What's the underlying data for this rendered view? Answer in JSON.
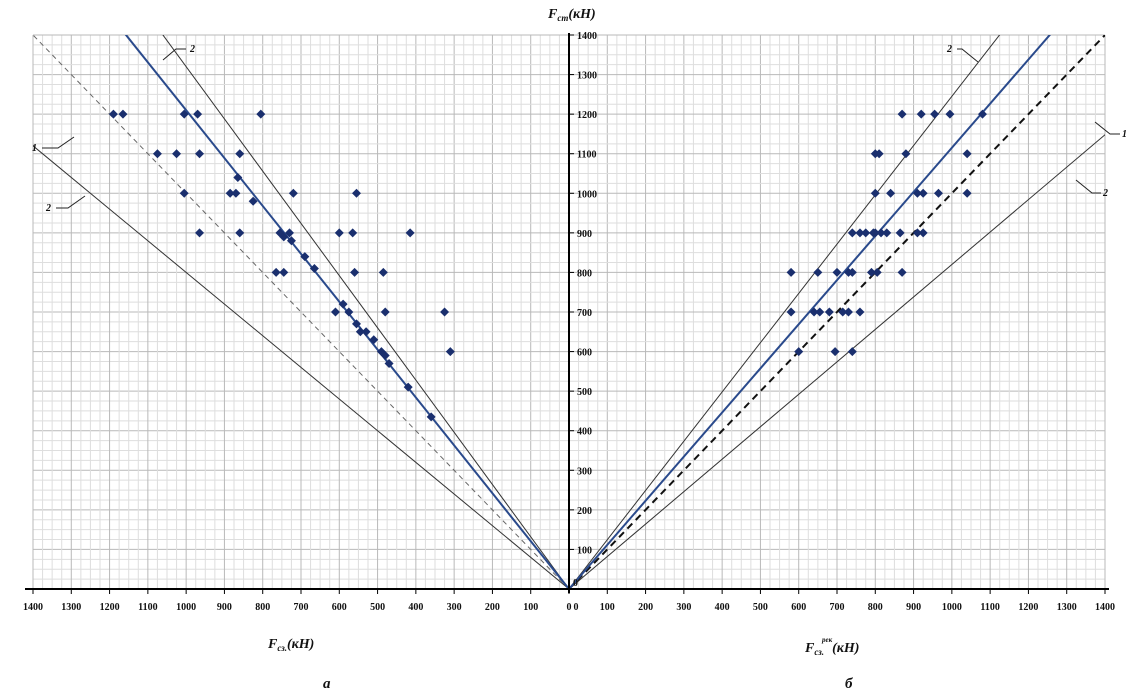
{
  "chart_data": {
    "type": "scatter",
    "y_axis_label": {
      "main": "F",
      "sub": "ст",
      "unit": "(кН)"
    },
    "x_label_left": {
      "main": "F",
      "sub": "сз.",
      "unit": "(кН)"
    },
    "x_label_right": {
      "main": "F",
      "sub": "сз.",
      "sup": "рек",
      "unit": "(кН)"
    },
    "panel_labels": [
      "а",
      "б"
    ],
    "line_labels": [
      "1",
      "2"
    ],
    "ylim": [
      0,
      1400
    ],
    "xlim_left": [
      1400,
      0
    ],
    "xlim_right": [
      0,
      1400
    ],
    "x_ticks_left": [
      1400,
      1300,
      1200,
      1100,
      1000,
      900,
      800,
      700,
      600,
      500,
      400,
      300,
      200,
      100,
      0
    ],
    "x_ticks_right": [
      0,
      100,
      200,
      300,
      400,
      500,
      600,
      700,
      800,
      900,
      1000,
      1100,
      1200,
      1300,
      1400
    ],
    "y_ticks": [
      100,
      200,
      300,
      400,
      500,
      600,
      700,
      800,
      900,
      1000,
      1100,
      1200,
      1300,
      1400
    ],
    "y_zero_tick": "0",
    "grid": true,
    "colors": {
      "points": "#1a2f6e",
      "regression": "#2a4a8c",
      "bound": "#333333",
      "dashed": "#333333"
    },
    "panel_a": {
      "points": [
        [
          1190,
          1200
        ],
        [
          1165,
          1200
        ],
        [
          1005,
          1200
        ],
        [
          970,
          1200
        ],
        [
          805,
          1200
        ],
        [
          1075,
          1100
        ],
        [
          1025,
          1100
        ],
        [
          965,
          1100
        ],
        [
          860,
          1100
        ],
        [
          865,
          1040
        ],
        [
          885,
          1000
        ],
        [
          870,
          1000
        ],
        [
          1005,
          1000
        ],
        [
          720,
          1000
        ],
        [
          555,
          1000
        ],
        [
          825,
          980
        ],
        [
          730,
          900
        ],
        [
          600,
          900
        ],
        [
          565,
          900
        ],
        [
          415,
          900
        ],
        [
          965,
          900
        ],
        [
          860,
          900
        ],
        [
          755,
          900
        ],
        [
          745,
          890
        ],
        [
          725,
          880
        ],
        [
          690,
          840
        ],
        [
          665,
          810
        ],
        [
          765,
          800
        ],
        [
          745,
          800
        ],
        [
          560,
          800
        ],
        [
          485,
          800
        ],
        [
          590,
          720
        ],
        [
          575,
          700
        ],
        [
          610,
          700
        ],
        [
          480,
          700
        ],
        [
          325,
          700
        ],
        [
          555,
          670
        ],
        [
          545,
          650
        ],
        [
          530,
          650
        ],
        [
          510,
          630
        ],
        [
          490,
          600
        ],
        [
          480,
          590
        ],
        [
          470,
          570
        ],
        [
          310,
          600
        ],
        [
          420,
          510
        ],
        [
          360,
          435
        ]
      ],
      "regression_slope": 1.21,
      "dashed_line1_slope": 1.0,
      "bound_upper_slope": 1.32,
      "bound_lower_slope": 0.8
    },
    "panel_b": {
      "points": [
        [
          870,
          1200
        ],
        [
          920,
          1200
        ],
        [
          955,
          1200
        ],
        [
          995,
          1200
        ],
        [
          1080,
          1200
        ],
        [
          800,
          1100
        ],
        [
          810,
          1100
        ],
        [
          880,
          1100
        ],
        [
          1040,
          1100
        ],
        [
          800,
          1000
        ],
        [
          840,
          1000
        ],
        [
          910,
          1000
        ],
        [
          925,
          1000
        ],
        [
          965,
          1000
        ],
        [
          1040,
          1000
        ],
        [
          740,
          900
        ],
        [
          760,
          900
        ],
        [
          775,
          900
        ],
        [
          795,
          900
        ],
        [
          800,
          900
        ],
        [
          815,
          900
        ],
        [
          830,
          900
        ],
        [
          865,
          900
        ],
        [
          910,
          900
        ],
        [
          925,
          900
        ],
        [
          580,
          800
        ],
        [
          650,
          800
        ],
        [
          700,
          800
        ],
        [
          730,
          800
        ],
        [
          740,
          800
        ],
        [
          790,
          800
        ],
        [
          805,
          800
        ],
        [
          870,
          800
        ],
        [
          580,
          700
        ],
        [
          640,
          700
        ],
        [
          655,
          700
        ],
        [
          680,
          700
        ],
        [
          715,
          700
        ],
        [
          730,
          700
        ],
        [
          760,
          700
        ],
        [
          600,
          600
        ],
        [
          695,
          600
        ],
        [
          740,
          600
        ]
      ],
      "regression_slope": 1.115,
      "dashed_line1_slope": 1.0,
      "bound_upper_slope": 1.245,
      "bound_lower_slope": 0.82
    }
  }
}
